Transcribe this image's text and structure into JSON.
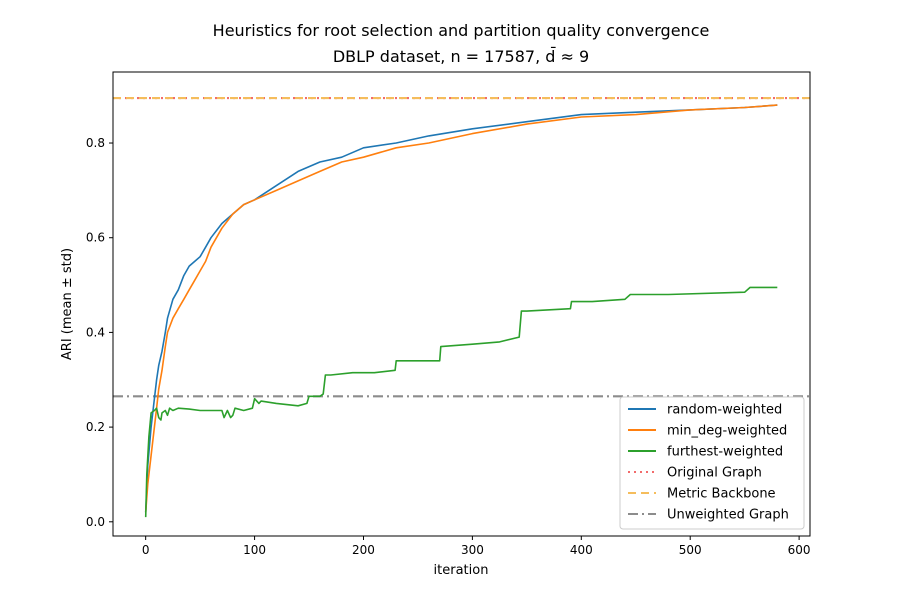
{
  "chart_data": {
    "type": "line",
    "title_line1": "Heuristics for root selection and partition quality convergence",
    "title_line2": "DBLP dataset, n = 17587, d̄ ≈ 9",
    "xlabel": "iteration",
    "ylabel": "ARI (mean ± std)",
    "xlim": [
      -30,
      610
    ],
    "ylim": [
      -0.03,
      0.95
    ],
    "xticks": [
      0,
      100,
      200,
      300,
      400,
      500,
      600
    ],
    "yticks": [
      0.0,
      0.2,
      0.4,
      0.6,
      0.8
    ],
    "xtick_labels": [
      "0",
      "100",
      "200",
      "300",
      "400",
      "500",
      "600"
    ],
    "ytick_labels": [
      "0.0",
      "0.2",
      "0.4",
      "0.6",
      "0.8"
    ],
    "grid": false,
    "legend_position": "lower-right",
    "series": [
      {
        "name": "random-weighted",
        "color": "#1f77b4",
        "style": "solid",
        "x": [
          0,
          2,
          5,
          8,
          10,
          12,
          15,
          18,
          20,
          25,
          30,
          35,
          40,
          45,
          50,
          55,
          60,
          70,
          80,
          90,
          100,
          120,
          140,
          160,
          180,
          200,
          230,
          260,
          300,
          350,
          400,
          450,
          500,
          550,
          580
        ],
        "y": [
          0.02,
          0.12,
          0.2,
          0.26,
          0.3,
          0.33,
          0.36,
          0.4,
          0.43,
          0.47,
          0.49,
          0.52,
          0.54,
          0.55,
          0.56,
          0.58,
          0.6,
          0.63,
          0.65,
          0.67,
          0.68,
          0.71,
          0.74,
          0.76,
          0.77,
          0.79,
          0.8,
          0.815,
          0.83,
          0.845,
          0.86,
          0.865,
          0.87,
          0.875,
          0.88
        ]
      },
      {
        "name": "min_deg-weighted",
        "color": "#ff7f0e",
        "style": "solid",
        "x": [
          0,
          2,
          5,
          8,
          10,
          12,
          15,
          18,
          20,
          25,
          30,
          35,
          40,
          45,
          50,
          55,
          60,
          70,
          80,
          90,
          100,
          120,
          140,
          160,
          180,
          200,
          230,
          260,
          300,
          350,
          400,
          450,
          500,
          550,
          580
        ],
        "y": [
          0.02,
          0.08,
          0.14,
          0.2,
          0.24,
          0.28,
          0.32,
          0.37,
          0.4,
          0.43,
          0.45,
          0.47,
          0.49,
          0.51,
          0.53,
          0.55,
          0.58,
          0.62,
          0.65,
          0.67,
          0.68,
          0.7,
          0.72,
          0.74,
          0.76,
          0.77,
          0.79,
          0.8,
          0.82,
          0.84,
          0.855,
          0.86,
          0.87,
          0.875,
          0.88
        ]
      },
      {
        "name": "furthest-weighted",
        "color": "#2ca02c",
        "style": "solid",
        "x": [
          0,
          1,
          3,
          5,
          8,
          10,
          12,
          14,
          15,
          18,
          20,
          22,
          25,
          30,
          40,
          50,
          60,
          70,
          72,
          75,
          78,
          80,
          82,
          90,
          98,
          100,
          104,
          106,
          120,
          140,
          148,
          150,
          160,
          163,
          165,
          166,
          170,
          190,
          210,
          229,
          230,
          250,
          270,
          271,
          300,
          325,
          343,
          345,
          350,
          390,
          391,
          410,
          440,
          445,
          480,
          550,
          555,
          580
        ],
        "y": [
          0.01,
          0.1,
          0.18,
          0.23,
          0.235,
          0.24,
          0.22,
          0.215,
          0.23,
          0.235,
          0.225,
          0.24,
          0.235,
          0.24,
          0.238,
          0.235,
          0.235,
          0.235,
          0.22,
          0.235,
          0.22,
          0.225,
          0.24,
          0.235,
          0.24,
          0.26,
          0.25,
          0.255,
          0.25,
          0.245,
          0.25,
          0.265,
          0.265,
          0.27,
          0.31,
          0.31,
          0.31,
          0.315,
          0.315,
          0.32,
          0.34,
          0.34,
          0.34,
          0.37,
          0.375,
          0.38,
          0.39,
          0.445,
          0.445,
          0.45,
          0.465,
          0.465,
          0.47,
          0.48,
          0.48,
          0.485,
          0.495,
          0.495
        ]
      }
    ],
    "hlines": [
      {
        "name": "Original Graph",
        "y": 0.895,
        "color": "#f26b6b",
        "style": "dotted"
      },
      {
        "name": "Metric Backbone",
        "y": 0.895,
        "color": "#f5bd5c",
        "style": "dashed"
      },
      {
        "name": "Unweighted Graph",
        "y": 0.265,
        "color": "#8c8c8c",
        "style": "dashdot"
      }
    ]
  }
}
